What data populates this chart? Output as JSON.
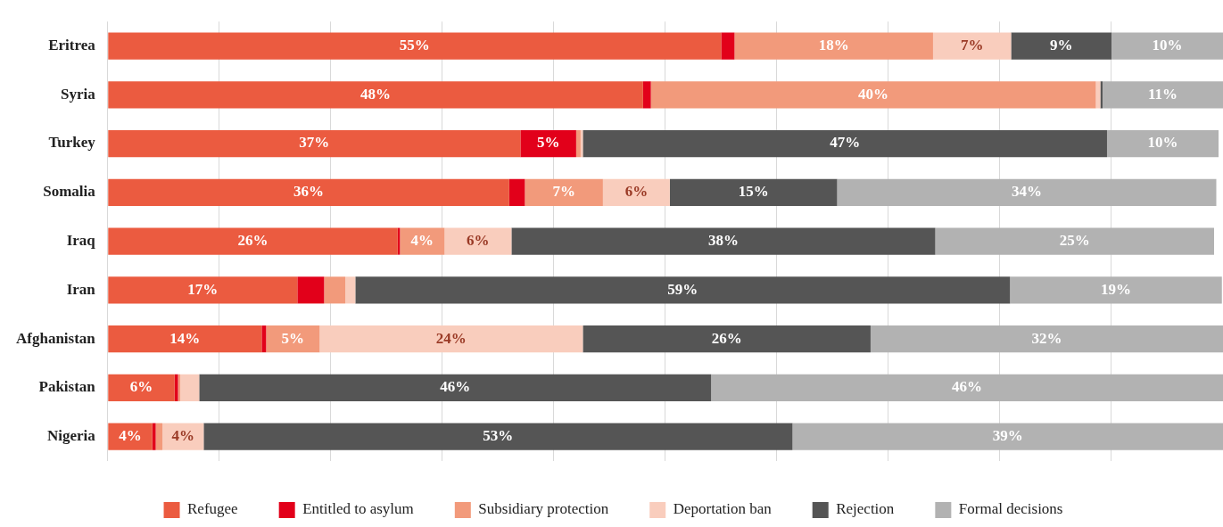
{
  "chart_data": {
    "type": "bar",
    "orientation": "horizontal",
    "stacked": true,
    "categories": [
      "Eritrea",
      "Syria",
      "Turkey",
      "Somalia",
      "Iraq",
      "Iran",
      "Afghanistan",
      "Pakistan",
      "Nigeria"
    ],
    "xlim": [
      0,
      100
    ],
    "tick_labels": "y",
    "grid": "x",
    "legend": "bottom",
    "series": [
      {
        "name": "Refugee",
        "color": "#eb5b40",
        "values": [
          55,
          48,
          37,
          36,
          26,
          17,
          13.8,
          6,
          4
        ],
        "value_labels": [
          "55%",
          "48%",
          "37%",
          "36%",
          "26%",
          "17%",
          "14%",
          "6%",
          "4%"
        ]
      },
      {
        "name": "Entitled to asylum",
        "color": "#e2001a",
        "values": [
          1.2,
          0.7,
          5,
          1.4,
          0.2,
          2.4,
          0.4,
          0.3,
          0.3
        ],
        "value_labels": [
          null,
          null,
          "5%",
          null,
          null,
          null,
          null,
          null,
          null
        ]
      },
      {
        "name": "Subsidiary protection",
        "color": "#f29a7b",
        "values": [
          17.8,
          39.9,
          0.4,
          7,
          4,
          1.9,
          4.8,
          0.2,
          0.6
        ],
        "value_labels": [
          "18%",
          "40%",
          null,
          "7%",
          "4%",
          null,
          "5%",
          null,
          null
        ]
      },
      {
        "name": "Deportation ban",
        "color": "#f9cdbd",
        "values": [
          7,
          0.4,
          0.2,
          6,
          6,
          0.9,
          23.6,
          1.7,
          3.7
        ],
        "value_labels": [
          "7%",
          null,
          null,
          "6%",
          "6%",
          null,
          "24%",
          null,
          "4%"
        ]
      },
      {
        "name": "Rejection",
        "color": "#555555",
        "values": [
          9,
          0.2,
          47,
          15,
          38,
          58.7,
          25.8,
          45.9,
          52.8
        ],
        "value_labels": [
          "9%",
          null,
          "47%",
          "15%",
          "38%",
          "59%",
          "26%",
          "46%",
          "53%"
        ]
      },
      {
        "name": "Formal decisions",
        "color": "#b2b2b2",
        "values": [
          10,
          10.8,
          10,
          34,
          25,
          19,
          31.6,
          45.9,
          38.6
        ],
        "value_labels": [
          "10%",
          "11%",
          "10%",
          "34%",
          "25%",
          "19%",
          "32%",
          "46%",
          "39%"
        ]
      }
    ]
  }
}
